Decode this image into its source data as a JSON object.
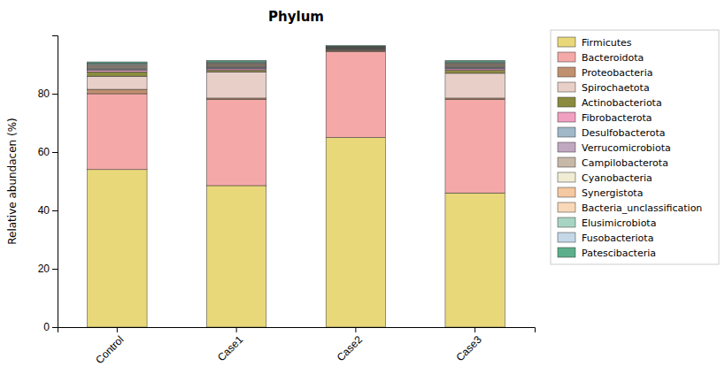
{
  "chart_data": {
    "type": "bar",
    "stacked": true,
    "title": "Phylum",
    "ylabel": "Relative abundacen (%)",
    "categories": [
      "Control",
      "Case1",
      "Case2",
      "Case3"
    ],
    "ylim": [
      0,
      100
    ],
    "yticks": [
      0,
      20,
      40,
      60,
      80
    ],
    "grid": false,
    "legend": "upper right",
    "series": [
      {
        "name": "Firmicutes",
        "color": "#E8D87A",
        "values": [
          54.0,
          48.5,
          65.0,
          46.0
        ]
      },
      {
        "name": "Bacteroidota",
        "color": "#F4A9A8",
        "values": [
          26.0,
          29.5,
          29.5,
          32.0
        ]
      },
      {
        "name": "Proteobacteria",
        "color": "#C09070",
        "values": [
          1.5,
          0.5,
          0.3,
          0.5
        ]
      },
      {
        "name": "Spirochaetota",
        "color": "#E8D0C8",
        "values": [
          4.5,
          9.0,
          0.2,
          8.5
        ]
      },
      {
        "name": "Actinobacteriota",
        "color": "#8B8B40",
        "values": [
          1.5,
          0.5,
          0.3,
          1.0
        ]
      },
      {
        "name": "Fibrobacterota",
        "color": "#F0A0C0",
        "values": [
          0.5,
          0.5,
          0.1,
          0.5
        ]
      },
      {
        "name": "Desulfobacterota",
        "color": "#A0B8C8",
        "values": [
          0.3,
          0.3,
          0.1,
          0.3
        ]
      },
      {
        "name": "Verrucomicrobiota",
        "color": "#C0A8C0",
        "values": [
          0.3,
          0.3,
          0.1,
          0.3
        ]
      },
      {
        "name": "Campilobacterota",
        "color": "#C8B8A8",
        "values": [
          0.3,
          0.3,
          0.1,
          0.3
        ]
      },
      {
        "name": "Cyanobacteria",
        "color": "#F0ECD4",
        "values": [
          0.3,
          0.3,
          0.1,
          0.3
        ]
      },
      {
        "name": "Synergistota",
        "color": "#F4C8A0",
        "values": [
          0.3,
          0.3,
          0.1,
          0.3
        ]
      },
      {
        "name": "Bacteria_unclassification",
        "color": "#F8D8B8",
        "values": [
          0.3,
          0.3,
          0.1,
          0.3
        ]
      },
      {
        "name": "Elusimicrobiota",
        "color": "#A8D4C4",
        "values": [
          0.3,
          0.3,
          0.1,
          0.3
        ]
      },
      {
        "name": "Fusobacteriota",
        "color": "#C4D8E8",
        "values": [
          0.3,
          0.3,
          0.1,
          0.3
        ]
      },
      {
        "name": "Patescibacteria",
        "color": "#5CAF8A",
        "values": [
          0.5,
          0.5,
          0.3,
          0.5
        ]
      }
    ]
  }
}
